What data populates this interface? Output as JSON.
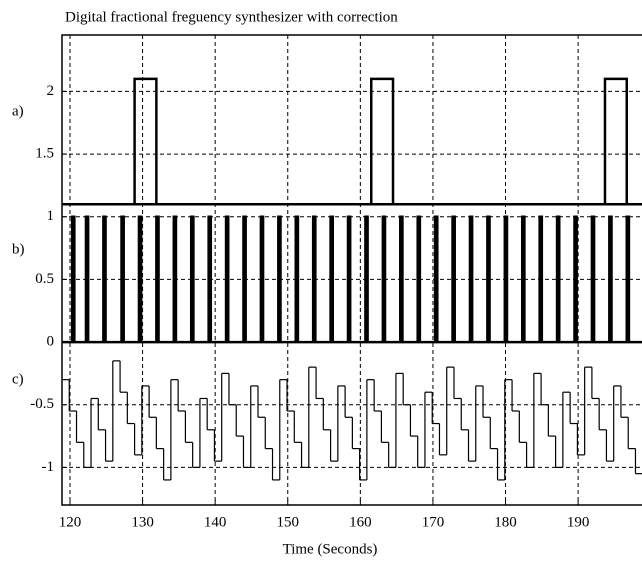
{
  "chart_data": {
    "type": "scope",
    "title": "Digital fractional freguency synthesizer with correction",
    "x_label": "Time (Seconds)",
    "annotations": [
      "a)",
      "b)",
      "c)"
    ],
    "xlim": [
      118.9,
      198.8
    ],
    "xticks": [
      120,
      130,
      140,
      150,
      160,
      170,
      180,
      190
    ],
    "ylim": [
      -1.3,
      2.45
    ],
    "yticks": [
      2,
      1.5,
      1,
      0.5,
      0,
      -0.5,
      -1
    ],
    "grid": true,
    "color": "#000000",
    "series": [
      {
        "kind": "pulses",
        "low": 1.1,
        "high": 2.1,
        "pulse_width": 3.0,
        "starts": [
          128.9,
          161.5,
          193.7
        ]
      },
      {
        "kind": "pulses",
        "low": 0,
        "high": 1,
        "pulse_width": 0.3,
        "starts": [
          120.3,
          122.2,
          124.6,
          127.1,
          129.5,
          131.9,
          134.3,
          136.7,
          139.1,
          141.5,
          143.9,
          146.3,
          148.7,
          151.1,
          153.5,
          155.9,
          158.3,
          160.7,
          163.1,
          165.5,
          167.9,
          170.3,
          172.7,
          175.1,
          177.5,
          179.9,
          182.3,
          184.7,
          187.1,
          189.5,
          191.9,
          194.3,
          196.7
        ]
      },
      {
        "kind": "steps",
        "x_start": 118.9,
        "step": 1.0,
        "values": [
          -0.3,
          -0.55,
          -0.8,
          -1.0,
          -0.45,
          -0.7,
          -0.95,
          -0.15,
          -0.4,
          -0.65,
          -0.9,
          -0.35,
          -0.6,
          -0.85,
          -1.1,
          -0.3,
          -0.55,
          -0.8,
          -1.0,
          -0.45,
          -0.7,
          -0.95,
          -0.25,
          -0.5,
          -0.75,
          -1.0,
          -0.35,
          -0.6,
          -0.85,
          -1.1,
          -0.3,
          -0.55,
          -0.8,
          -1.0,
          -0.2,
          -0.45,
          -0.7,
          -0.95,
          -0.35,
          -0.6,
          -0.85,
          -1.1,
          -0.3,
          -0.55,
          -0.8,
          -1.0,
          -0.25,
          -0.5,
          -0.75,
          -1.0,
          -0.4,
          -0.65,
          -0.9,
          -0.2,
          -0.45,
          -0.7,
          -0.95,
          -0.35,
          -0.6,
          -0.85,
          -1.1,
          -0.3,
          -0.55,
          -0.8,
          -1.0,
          -0.25,
          -0.5,
          -0.75,
          -1.0,
          -0.4,
          -0.65,
          -0.9,
          -0.2,
          -0.45,
          -0.7,
          -0.95,
          -0.35,
          -0.6,
          -0.85,
          -1.05
        ]
      }
    ]
  }
}
